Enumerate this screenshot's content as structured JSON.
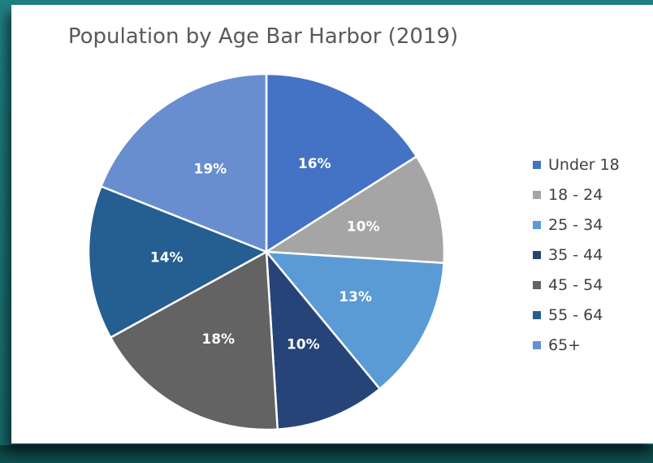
{
  "chart_data": {
    "type": "pie",
    "title": "Population by Age Bar Harbor (2019)",
    "categories": [
      "Under 18",
      "18 - 24",
      "25 - 34",
      "35 - 44",
      "45 - 54",
      "55 - 64",
      "65+"
    ],
    "values": [
      16,
      10,
      13,
      10,
      18,
      14,
      19
    ],
    "value_labels": [
      "16%",
      "10%",
      "13%",
      "10%",
      "18%",
      "14%",
      "19%"
    ],
    "colors": [
      "#4472c4",
      "#a5a5a5",
      "#5b9bd5",
      "#264478",
      "#636363",
      "#255e91",
      "#698ed0"
    ],
    "legend_position": "right",
    "start_angle_deg": 0,
    "direction": "clockwise"
  }
}
